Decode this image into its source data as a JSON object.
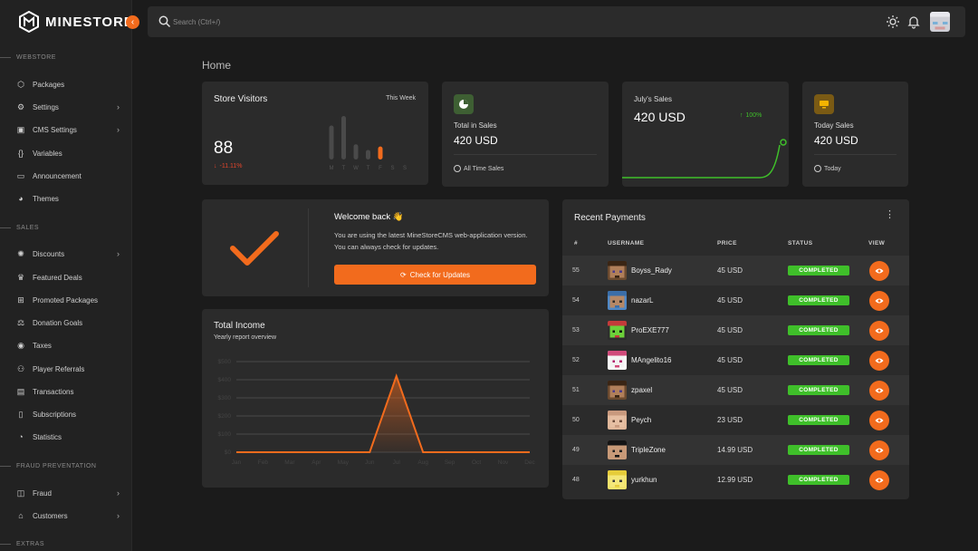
{
  "brand": {
    "name": "MINESTORE",
    "collapse_icon": "chevron-left-icon",
    "accent": "#f26b1d"
  },
  "sidebar": {
    "sections": [
      {
        "label": "WEBSTORE",
        "items": [
          {
            "label": "Packages",
            "icon": "box-icon",
            "chevron": false
          },
          {
            "label": "Settings",
            "icon": "gear-icon",
            "chevron": true
          },
          {
            "label": "CMS Settings",
            "icon": "layout-icon",
            "chevron": true
          },
          {
            "label": "Variables",
            "icon": "braces-icon",
            "chevron": false
          },
          {
            "label": "Announcement",
            "icon": "monitor-icon",
            "chevron": false
          },
          {
            "label": "Themes",
            "icon": "palette-icon",
            "chevron": false
          }
        ]
      },
      {
        "label": "SALES",
        "items": [
          {
            "label": "Discounts",
            "icon": "discount-icon",
            "chevron": true
          },
          {
            "label": "Featured Deals",
            "icon": "crown-icon",
            "chevron": false
          },
          {
            "label": "Promoted Packages",
            "icon": "gift-icon",
            "chevron": false
          },
          {
            "label": "Donation Goals",
            "icon": "goal-icon",
            "chevron": false
          },
          {
            "label": "Taxes",
            "icon": "coin-icon",
            "chevron": false
          },
          {
            "label": "Player Referrals",
            "icon": "users-icon",
            "chevron": false
          },
          {
            "label": "Transactions",
            "icon": "receipt-icon",
            "chevron": false
          },
          {
            "label": "Subscriptions",
            "icon": "tablet-icon",
            "chevron": false
          },
          {
            "label": "Statistics",
            "icon": "pie-icon",
            "chevron": false
          }
        ]
      },
      {
        "label": "FRAUD PREVENTATION",
        "items": [
          {
            "label": "Fraud",
            "icon": "mask-icon",
            "chevron": true
          },
          {
            "label": "Customers",
            "icon": "store-icon",
            "chevron": true
          }
        ]
      },
      {
        "label": "EXTRAS",
        "items": []
      }
    ]
  },
  "topbar": {
    "search_placeholder": "Search (Ctrl+/)",
    "icons": [
      "sun-icon",
      "bell-icon"
    ]
  },
  "page": {
    "title": "Home"
  },
  "visitors": {
    "title": "Store Visitors",
    "period": "This Week",
    "value": "88",
    "change": "-11.11%",
    "days": [
      "M",
      "T",
      "W",
      "T",
      "F",
      "S",
      "S"
    ],
    "bar_levels": [
      0.78,
      1.0,
      0.35,
      0.22,
      0.3,
      0,
      0
    ]
  },
  "total_sales": {
    "label": "Total in Sales",
    "value": "420 USD",
    "footer": "All Time Sales",
    "icon": "pie-icon"
  },
  "july_sales": {
    "label": "July's Sales",
    "value": "420 USD",
    "change": "100%"
  },
  "today_sales": {
    "label": "Today Sales",
    "value": "420 USD",
    "footer": "Today",
    "icon": "monitor-icon"
  },
  "welcome": {
    "title": "Welcome back 👋",
    "text": "You are using the latest MineStoreCMS web-application version. You can always check for updates.",
    "button": "Check for Updates"
  },
  "income": {
    "title": "Total Income",
    "subtitle": "Yearly report overview"
  },
  "chart_data": {
    "type": "area",
    "title": "Total Income",
    "subtitle": "Yearly report overview",
    "categories": [
      "Jan",
      "Feb",
      "Mar",
      "Apr",
      "May",
      "Jun",
      "Jul",
      "Aug",
      "Sep",
      "Oct",
      "Nov",
      "Dec"
    ],
    "values": [
      0,
      0,
      0,
      0,
      0,
      0,
      420,
      0,
      0,
      0,
      0,
      0
    ],
    "yticks": [
      "$0",
      "$100",
      "$200",
      "$300",
      "$400",
      "$500"
    ],
    "ylim": [
      0,
      500
    ],
    "grid": true,
    "color": "#f26b1d"
  },
  "payments": {
    "title": "Recent Payments",
    "columns": [
      "#",
      "USERNAME",
      "PRICE",
      "STATUS",
      "VIEW"
    ],
    "rows": [
      {
        "id": "55",
        "username": "Boyss_Rady",
        "price": "45 USD",
        "status": "COMPLETED",
        "skin": "steve"
      },
      {
        "id": "54",
        "username": "nazarL",
        "price": "45 USD",
        "status": "COMPLETED",
        "skin": "blue"
      },
      {
        "id": "53",
        "username": "ProEXE777",
        "price": "45 USD",
        "status": "COMPLETED",
        "skin": "green"
      },
      {
        "id": "52",
        "username": "MAngelito16",
        "price": "45 USD",
        "status": "COMPLETED",
        "skin": "pink"
      },
      {
        "id": "51",
        "username": "zpaxel",
        "price": "45 USD",
        "status": "COMPLETED",
        "skin": "steve"
      },
      {
        "id": "50",
        "username": "Peych",
        "price": "23 USD",
        "status": "COMPLETED",
        "skin": "bald"
      },
      {
        "id": "49",
        "username": "TripleZone",
        "price": "14.99 USD",
        "status": "COMPLETED",
        "skin": "dark"
      },
      {
        "id": "48",
        "username": "yurkhun",
        "price": "12.99 USD",
        "status": "COMPLETED",
        "skin": "yellow"
      }
    ]
  }
}
